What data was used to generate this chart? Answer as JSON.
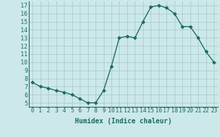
{
  "x": [
    0,
    1,
    2,
    3,
    4,
    5,
    6,
    7,
    8,
    9,
    10,
    11,
    12,
    13,
    14,
    15,
    16,
    17,
    18,
    19,
    20,
    21,
    22,
    23
  ],
  "y": [
    7.5,
    7.0,
    6.8,
    6.5,
    6.3,
    6.0,
    5.5,
    5.0,
    5.0,
    6.5,
    9.5,
    13.0,
    13.2,
    13.0,
    15.0,
    16.8,
    17.0,
    16.7,
    16.0,
    14.4,
    14.4,
    13.0,
    11.3,
    10.0
  ],
  "line_color": "#1a6b5a",
  "marker": "D",
  "markersize": 2.5,
  "linewidth": 1.0,
  "bg_color": "#cce8e8",
  "grid_color": "#aacccc",
  "xlabel": "Humidex (Indice chaleur)",
  "xlim": [
    -0.5,
    23.5
  ],
  "ylim": [
    4.5,
    17.5
  ],
  "yticks": [
    5,
    6,
    7,
    8,
    9,
    10,
    11,
    12,
    13,
    14,
    15,
    16,
    17
  ],
  "xticks": [
    0,
    1,
    2,
    3,
    4,
    5,
    6,
    7,
    8,
    9,
    10,
    11,
    12,
    13,
    14,
    15,
    16,
    17,
    18,
    19,
    20,
    21,
    22,
    23
  ],
  "axis_color": "#1a6b5a",
  "tick_color": "#1a6b5a",
  "label_fontsize": 6,
  "xlabel_fontsize": 7
}
